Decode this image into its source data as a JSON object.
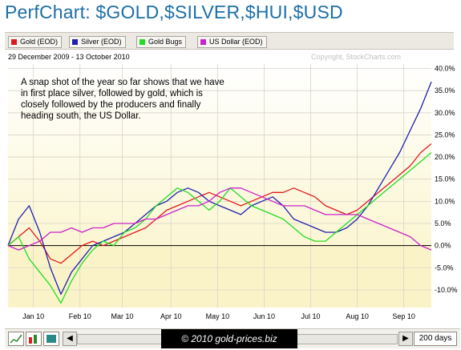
{
  "title": "PerfChart: $GOLD,$SILVER,$HUI,$USD",
  "legend": [
    {
      "label": "Gold (EOD)",
      "color": "#e0191c"
    },
    {
      "label": "Silver (EOD)",
      "color": "#2020b0"
    },
    {
      "label": "Gold Bugs",
      "color": "#22dd22"
    },
    {
      "label": "US Dollar (EOD)",
      "color": "#cc22cc"
    }
  ],
  "date_range": "29 December 2009 - 13 October 2010",
  "copyright": "Copyright, StockCharts.com",
  "annotation_lines": [
    "A snap shot of the year so far shows that we have",
    "in first place silver, followed by gold, which is",
    "closely followed by the producers and finally",
    "heading south, the US Dollar."
  ],
  "bottom": {
    "caption": "© 2010 gold-prices.biz",
    "days": "200 days",
    "scroll_left": "◀",
    "scroll_right": "▶"
  },
  "chart_data": {
    "type": "line",
    "ylim": [
      -14,
      41
    ],
    "yticks": [
      -10,
      -5,
      0,
      5,
      10,
      15,
      20,
      25,
      30,
      35,
      40
    ],
    "ytick_labels": [
      "-10.0%",
      "-5.0%",
      "0.0%",
      "5.0%",
      "10.0%",
      "15.0%",
      "20.0%",
      "25.0%",
      "30.0%",
      "35.0%",
      "40.0%"
    ],
    "xlim": [
      0,
      200
    ],
    "xtick_labels": [
      {
        "label": "Jan 10",
        "x": 12
      },
      {
        "label": "Feb 10",
        "x": 34
      },
      {
        "label": "Mar 10",
        "x": 54
      },
      {
        "label": "Apr 10",
        "x": 77
      },
      {
        "label": "May 10",
        "x": 99
      },
      {
        "label": "Jun 10",
        "x": 121
      },
      {
        "label": "Jul 10",
        "x": 143
      },
      {
        "label": "Aug 10",
        "x": 165
      },
      {
        "label": "Sep 10",
        "x": 187
      }
    ],
    "x": [
      0,
      5,
      10,
      15,
      20,
      25,
      30,
      35,
      40,
      45,
      50,
      55,
      60,
      65,
      70,
      75,
      80,
      85,
      90,
      95,
      100,
      105,
      110,
      115,
      120,
      125,
      130,
      135,
      140,
      145,
      150,
      155,
      160,
      165,
      170,
      175,
      180,
      185,
      190,
      195,
      200
    ],
    "series": [
      {
        "name": "Gold (EOD)",
        "color": "#e0191c",
        "values": [
          0,
          2,
          4,
          1,
          -3,
          -4,
          -2,
          0,
          1,
          0,
          1,
          2,
          3,
          4,
          6,
          8,
          9,
          10,
          11,
          12,
          11,
          10,
          9,
          10,
          11,
          12,
          12,
          13,
          12,
          11,
          9,
          8,
          7,
          8,
          10,
          12,
          14,
          16,
          18,
          21,
          23
        ]
      },
      {
        "name": "Silver (EOD)",
        "color": "#2020b0",
        "values": [
          0,
          6,
          9,
          3,
          -5,
          -11,
          -6,
          -3,
          0,
          1,
          2,
          3,
          5,
          7,
          9,
          10,
          12,
          13,
          12,
          10,
          9,
          8,
          7,
          9,
          10,
          11,
          9,
          6,
          5,
          4,
          3,
          3,
          4,
          6,
          9,
          13,
          17,
          21,
          26,
          31,
          37
        ]
      },
      {
        "name": "Gold Bugs",
        "color": "#22dd22",
        "values": [
          0,
          2,
          -3,
          -6,
          -9,
          -13,
          -8,
          -4,
          -1,
          1,
          0,
          3,
          4,
          6,
          9,
          11,
          13,
          12,
          10,
          8,
          10,
          13,
          11,
          9,
          8,
          7,
          6,
          4,
          2,
          1,
          1,
          3,
          5,
          7,
          9,
          11,
          13,
          15,
          17,
          19,
          21
        ]
      },
      {
        "name": "US Dollar (EOD)",
        "color": "#cc22cc",
        "values": [
          0,
          -1,
          0,
          1,
          3,
          3,
          4,
          3,
          4,
          4,
          5,
          5,
          5,
          6,
          6,
          7,
          8,
          9,
          9,
          10,
          12,
          13,
          13,
          12,
          11,
          10,
          9,
          9,
          9,
          8,
          7,
          7,
          7,
          7,
          6,
          5,
          4,
          3,
          2,
          0,
          -1
        ]
      }
    ]
  }
}
